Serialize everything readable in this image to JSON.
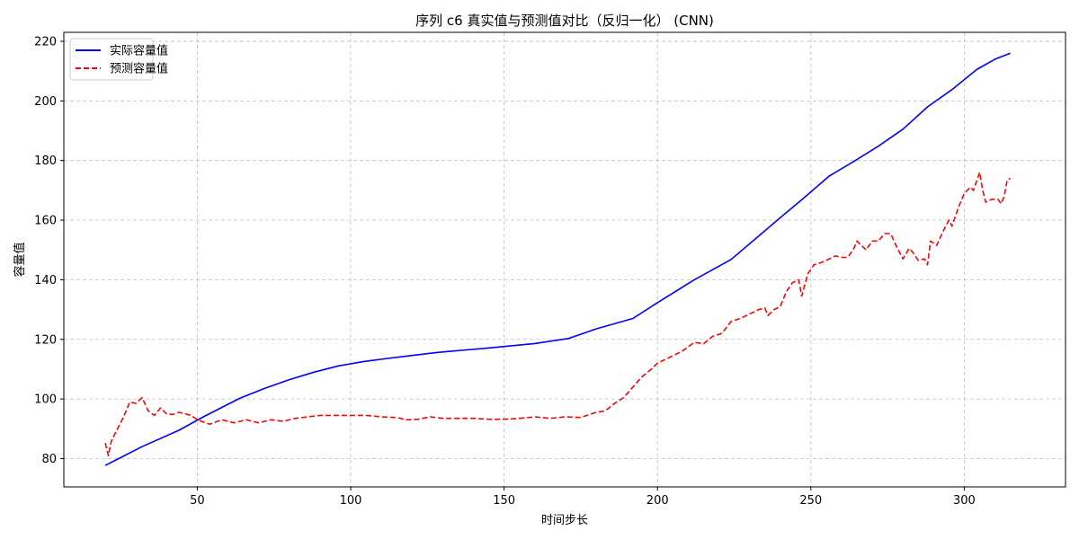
{
  "chart_data": {
    "type": "line",
    "title": "序列 c6 真实值与预测值对比（反归一化） (CNN)",
    "xlabel": "时间步长",
    "ylabel": "容量值",
    "xlim": [
      6.5,
      333
    ],
    "ylim": [
      70.5,
      223
    ],
    "xticks": [
      50,
      100,
      150,
      200,
      250,
      300
    ],
    "yticks": [
      80,
      100,
      120,
      140,
      160,
      180,
      200,
      220
    ],
    "grid": true,
    "legend_position": "top-left",
    "series": [
      {
        "name": "实际容量值",
        "color": "#0000ff",
        "style": "solid",
        "points": [
          [
            20,
            77.7
          ],
          [
            32,
            84
          ],
          [
            44,
            89.5
          ],
          [
            52,
            94
          ],
          [
            64,
            100.3
          ],
          [
            72,
            103.6
          ],
          [
            80,
            106.5
          ],
          [
            88,
            109
          ],
          [
            96,
            111.1
          ],
          [
            104,
            112.5
          ],
          [
            112,
            113.6
          ],
          [
            120,
            114.6
          ],
          [
            128,
            115.6
          ],
          [
            136,
            116.3
          ],
          [
            144,
            117
          ],
          [
            152,
            117.8
          ],
          [
            160,
            118.6
          ],
          [
            171,
            120.3
          ],
          [
            180,
            123.5
          ],
          [
            192,
            127
          ],
          [
            200,
            132.3
          ],
          [
            212,
            140
          ],
          [
            224,
            146.8
          ],
          [
            232,
            153.8
          ],
          [
            240,
            160.8
          ],
          [
            248,
            167.7
          ],
          [
            256,
            174.8
          ],
          [
            264,
            179.7
          ],
          [
            272,
            184.8
          ],
          [
            280,
            190.5
          ],
          [
            288,
            198
          ],
          [
            296,
            203.8
          ],
          [
            304,
            210.5
          ],
          [
            310,
            214
          ],
          [
            315,
            216
          ]
        ]
      },
      {
        "name": "预测容量值",
        "color": "#ff0000",
        "style": "dashed",
        "points": [
          [
            20,
            85.2
          ],
          [
            21,
            81
          ],
          [
            22,
            86
          ],
          [
            24,
            90
          ],
          [
            26,
            94
          ],
          [
            28,
            99
          ],
          [
            30,
            98.5
          ],
          [
            32,
            100.5
          ],
          [
            34,
            96
          ],
          [
            36,
            94.5
          ],
          [
            38,
            97
          ],
          [
            40,
            95
          ],
          [
            42,
            94.8
          ],
          [
            44,
            95.5
          ],
          [
            48,
            94.5
          ],
          [
            50,
            93
          ],
          [
            54,
            91.5
          ],
          [
            58,
            93
          ],
          [
            62,
            92
          ],
          [
            66,
            93
          ],
          [
            70,
            92
          ],
          [
            74,
            93
          ],
          [
            78,
            92.5
          ],
          [
            82,
            93.5
          ],
          [
            86,
            94
          ],
          [
            90,
            94.5
          ],
          [
            95,
            94.5
          ],
          [
            100,
            94.5
          ],
          [
            105,
            94.5
          ],
          [
            110,
            94
          ],
          [
            115,
            93.8
          ],
          [
            118,
            93
          ],
          [
            122,
            93.2
          ],
          [
            126,
            94
          ],
          [
            130,
            93.5
          ],
          [
            135,
            93.5
          ],
          [
            140,
            93.5
          ],
          [
            145,
            93.2
          ],
          [
            150,
            93.2
          ],
          [
            155,
            93.5
          ],
          [
            160,
            94
          ],
          [
            165,
            93.5
          ],
          [
            170,
            94
          ],
          [
            175,
            93.8
          ],
          [
            180,
            95.5
          ],
          [
            183,
            96
          ],
          [
            186,
            98.5
          ],
          [
            189,
            100.5
          ],
          [
            192,
            104
          ],
          [
            195,
            107.5
          ],
          [
            198,
            110
          ],
          [
            200,
            112
          ],
          [
            204,
            114
          ],
          [
            208,
            116
          ],
          [
            212,
            119
          ],
          [
            215,
            118.5
          ],
          [
            218,
            121
          ],
          [
            221,
            122
          ],
          [
            224,
            126
          ],
          [
            227,
            127
          ],
          [
            230,
            128.5
          ],
          [
            233,
            130
          ],
          [
            235,
            130.5
          ],
          [
            236,
            128
          ],
          [
            238,
            130
          ],
          [
            240,
            131
          ],
          [
            242,
            136
          ],
          [
            244,
            139
          ],
          [
            246,
            140
          ],
          [
            247,
            134.5
          ],
          [
            249,
            142
          ],
          [
            251,
            145
          ],
          [
            254,
            146
          ],
          [
            256,
            147
          ],
          [
            258,
            148
          ],
          [
            260,
            147.5
          ],
          [
            262,
            147.5
          ],
          [
            264,
            150.5
          ],
          [
            265,
            153
          ],
          [
            267,
            151
          ],
          [
            268,
            150
          ],
          [
            270,
            153
          ],
          [
            272,
            153
          ],
          [
            274,
            155.5
          ],
          [
            276,
            155.5
          ],
          [
            278,
            151
          ],
          [
            280,
            147
          ],
          [
            282,
            150.5
          ],
          [
            283,
            149.5
          ],
          [
            285,
            146.5
          ],
          [
            287,
            147
          ],
          [
            288,
            145
          ],
          [
            289,
            153
          ],
          [
            291,
            151.5
          ],
          [
            293,
            156
          ],
          [
            295,
            160
          ],
          [
            296,
            158
          ],
          [
            298,
            164
          ],
          [
            300,
            169
          ],
          [
            302,
            171
          ],
          [
            303,
            170
          ],
          [
            305,
            176
          ],
          [
            306,
            170
          ],
          [
            307,
            166
          ],
          [
            309,
            167
          ],
          [
            311,
            167
          ],
          [
            312,
            165.5
          ],
          [
            313,
            168
          ],
          [
            314,
            173.5
          ],
          [
            315,
            174
          ]
        ]
      }
    ]
  }
}
